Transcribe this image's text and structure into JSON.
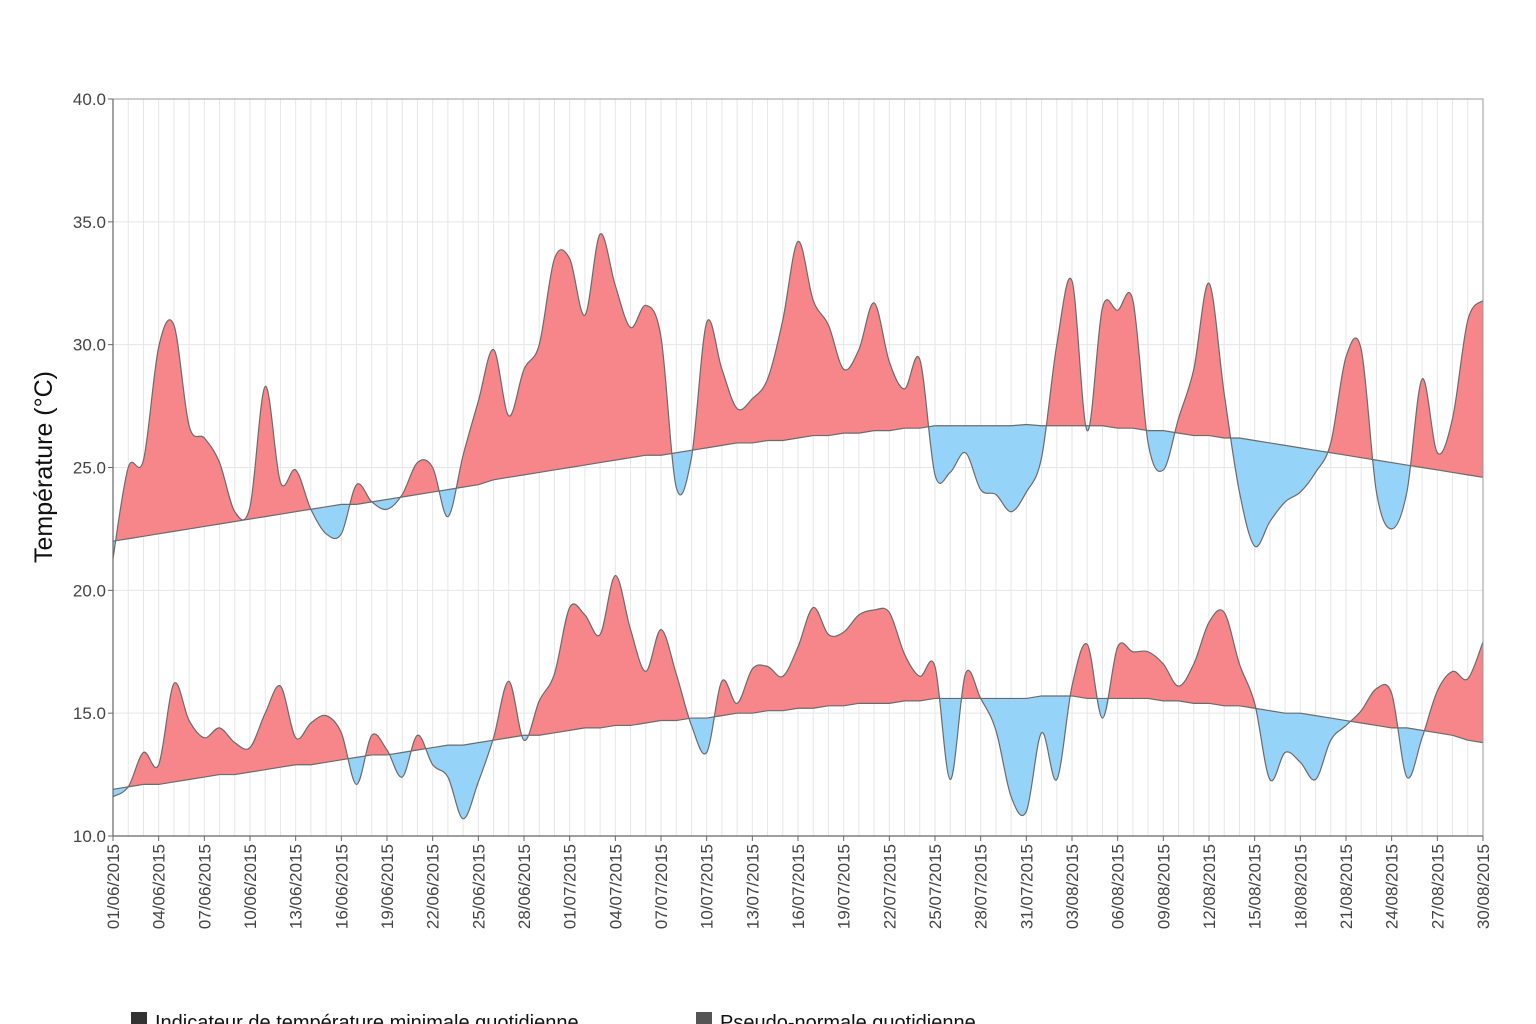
{
  "chart_data": {
    "type": "area",
    "title": "",
    "xlabel": "",
    "ylabel": "Température (°C)",
    "ylim": [
      10,
      40
    ],
    "yticks": [
      "10.0",
      "15.0",
      "20.0",
      "25.0",
      "30.0",
      "35.0",
      "40.0"
    ],
    "x_start": "01/06/2015",
    "x_end": "30/08/2015",
    "xticks": [
      "01/06/2015",
      "04/06/2015",
      "07/06/2015",
      "10/06/2015",
      "13/06/2015",
      "16/06/2015",
      "19/06/2015",
      "22/06/2015",
      "25/06/2015",
      "28/06/2015",
      "01/07/2015",
      "04/07/2015",
      "07/07/2015",
      "10/07/2015",
      "13/07/2015",
      "16/07/2015",
      "19/07/2015",
      "22/07/2015",
      "25/07/2015",
      "28/07/2015",
      "31/07/2015",
      "03/08/2015",
      "06/08/2015",
      "09/08/2015",
      "12/08/2015",
      "15/08/2015",
      "18/08/2015",
      "21/08/2015",
      "24/08/2015",
      "27/08/2015",
      "30/08/2015"
    ],
    "grid": true,
    "legend_placement": "bottom",
    "colors": {
      "above": "#f6868a",
      "below": "#96d3f8",
      "outline": "#6b6b6b"
    },
    "series": [
      {
        "values": [
          21.3,
          25.0,
          25.3,
          29.9,
          30.8,
          26.7,
          26.2,
          25.2,
          23.2,
          23.4,
          28.3,
          24.4,
          24.9,
          23.3,
          22.3,
          22.3,
          24.3,
          23.6,
          23.3,
          23.9,
          25.2,
          25.0,
          23.0,
          25.5,
          27.7,
          29.8,
          27.1,
          29.0,
          30.0,
          33.5,
          33.5,
          31.2,
          34.5,
          32.4,
          30.7,
          31.6,
          30.3,
          24.2,
          25.4,
          30.9,
          29.0,
          27.4,
          27.8,
          28.6,
          31.0,
          34.2,
          31.8,
          30.8,
          29.0,
          29.8,
          31.7,
          29.3,
          28.2,
          29.4,
          24.7,
          24.8,
          25.6,
          24.1,
          23.9,
          23.2,
          24.0,
          25.4,
          30.0,
          32.6,
          26.5,
          31.5,
          31.4,
          31.8,
          26.0,
          24.9,
          27.0,
          29.0,
          32.5,
          28.0,
          24.0,
          21.8,
          22.8,
          23.6,
          24.0,
          24.8,
          26.0,
          29.5,
          29.8,
          24.0,
          22.5,
          24.0,
          28.6,
          25.6,
          27.0,
          31.0,
          31.8
        ],
        "normal": [
          22.0,
          22.1,
          22.2,
          22.3,
          22.4,
          22.5,
          22.6,
          22.7,
          22.8,
          22.9,
          23.0,
          23.1,
          23.2,
          23.3,
          23.4,
          23.5,
          23.5,
          23.6,
          23.7,
          23.8,
          23.9,
          24.0,
          24.1,
          24.2,
          24.3,
          24.5,
          24.6,
          24.7,
          24.8,
          24.9,
          25.0,
          25.1,
          25.2,
          25.3,
          25.4,
          25.5,
          25.5,
          25.6,
          25.7,
          25.8,
          25.9,
          26.0,
          26.0,
          26.1,
          26.1,
          26.2,
          26.3,
          26.3,
          26.4,
          26.4,
          26.5,
          26.5,
          26.6,
          26.6,
          26.7,
          26.7,
          26.7,
          26.7,
          26.7,
          26.7,
          26.75,
          26.7,
          26.7,
          26.7,
          26.7,
          26.7,
          26.6,
          26.6,
          26.5,
          26.5,
          26.4,
          26.3,
          26.3,
          26.2,
          26.2,
          26.1,
          26.0,
          25.9,
          25.8,
          25.7,
          25.6,
          25.5,
          25.4,
          25.3,
          25.2,
          25.1,
          25.0,
          24.9,
          24.8,
          24.7,
          24.6
        ]
      },
      {
        "values": [
          11.6,
          12.0,
          13.4,
          12.9,
          16.2,
          14.7,
          14.0,
          14.4,
          13.8,
          13.6,
          15.0,
          16.1,
          14.0,
          14.6,
          14.9,
          14.2,
          12.1,
          14.1,
          13.5,
          12.4,
          14.1,
          12.9,
          12.4,
          10.7,
          12.2,
          14.0,
          16.3,
          13.9,
          15.5,
          16.6,
          19.3,
          19.0,
          18.2,
          20.6,
          18.4,
          16.7,
          18.4,
          16.6,
          14.5,
          13.4,
          16.3,
          15.4,
          16.8,
          16.9,
          16.5,
          17.7,
          19.3,
          18.2,
          18.3,
          19.0,
          19.2,
          19.1,
          17.4,
          16.5,
          16.9,
          12.3,
          16.6,
          15.6,
          14.3,
          11.6,
          11.0,
          14.2,
          12.3,
          16.1,
          17.8,
          14.8,
          17.7,
          17.5,
          17.5,
          17.0,
          16.1,
          17.0,
          18.7,
          19.1,
          17.0,
          15.4,
          12.3,
          13.4,
          13.0,
          12.3,
          13.9,
          14.5,
          15.1,
          16.0,
          15.8,
          12.4,
          14.0,
          15.9,
          16.7,
          16.4,
          17.9
        ],
        "normal": [
          11.9,
          12.0,
          12.1,
          12.1,
          12.2,
          12.3,
          12.4,
          12.5,
          12.5,
          12.6,
          12.7,
          12.8,
          12.9,
          12.9,
          13.0,
          13.1,
          13.2,
          13.3,
          13.3,
          13.4,
          13.5,
          13.6,
          13.7,
          13.7,
          13.8,
          13.9,
          14.0,
          14.1,
          14.1,
          14.2,
          14.3,
          14.4,
          14.4,
          14.5,
          14.5,
          14.6,
          14.7,
          14.7,
          14.8,
          14.8,
          14.9,
          15.0,
          15.0,
          15.1,
          15.1,
          15.2,
          15.2,
          15.3,
          15.3,
          15.4,
          15.4,
          15.4,
          15.5,
          15.5,
          15.6,
          15.6,
          15.6,
          15.6,
          15.6,
          15.6,
          15.6,
          15.7,
          15.7,
          15.7,
          15.6,
          15.6,
          15.6,
          15.6,
          15.6,
          15.5,
          15.5,
          15.4,
          15.4,
          15.3,
          15.3,
          15.2,
          15.1,
          15.0,
          15.0,
          14.9,
          14.8,
          14.7,
          14.6,
          14.5,
          14.4,
          14.4,
          14.3,
          14.2,
          14.1,
          13.9,
          13.8
        ]
      }
    ],
    "legend": [
      {
        "label": "Indicateur de température minimale quotidienne",
        "color": "#333333"
      },
      {
        "label": "Pseudo-normale quotidienne",
        "color": "#555555"
      }
    ]
  }
}
